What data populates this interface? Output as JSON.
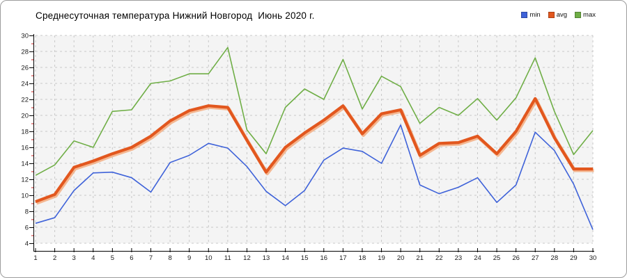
{
  "title": "Среднесуточная температура Нижний Новгород  Июнь 2020 г.",
  "legend": [
    {
      "label": "min",
      "color": "#3e62d9"
    },
    {
      "label": "avg",
      "color": "#e2571e"
    },
    {
      "label": "max",
      "color": "#6fae46"
    }
  ],
  "chart_data": {
    "type": "line",
    "title": "Среднесуточная температура Нижний Новгород  Июнь 2020 г.",
    "xlabel": "",
    "ylabel": "",
    "x": [
      1,
      2,
      3,
      4,
      5,
      6,
      7,
      8,
      9,
      10,
      11,
      12,
      13,
      14,
      15,
      16,
      17,
      18,
      19,
      20,
      21,
      22,
      23,
      24,
      25,
      26,
      27,
      28,
      29,
      30
    ],
    "series": [
      {
        "name": "min",
        "color": "#3e62d9",
        "values": [
          6.5,
          7.2,
          10.6,
          12.8,
          12.9,
          12.2,
          10.4,
          14.1,
          15.0,
          16.5,
          15.9,
          13.6,
          10.5,
          8.7,
          10.6,
          14.4,
          15.9,
          15.5,
          14.0,
          18.8,
          11.3,
          10.2,
          11.0,
          12.2,
          9.1,
          11.3,
          17.9,
          15.6,
          11.4,
          5.7
        ]
      },
      {
        "name": "avg",
        "color": "#e2571e",
        "values": [
          9.2,
          10.1,
          13.5,
          14.3,
          15.2,
          16.0,
          17.4,
          19.3,
          20.6,
          21.2,
          21.0,
          16.9,
          12.9,
          16.0,
          17.8,
          19.4,
          21.2,
          17.7,
          20.2,
          20.7,
          15.0,
          16.5,
          16.6,
          17.4,
          15.2,
          18.0,
          22.1,
          17.2,
          13.3,
          13.3
        ]
      },
      {
        "name": "max",
        "color": "#6fae46",
        "values": [
          12.5,
          13.8,
          16.8,
          16.0,
          20.5,
          20.7,
          24.0,
          24.3,
          25.2,
          25.2,
          28.5,
          18.2,
          15.2,
          21.0,
          23.3,
          22.0,
          27.0,
          20.8,
          24.9,
          23.6,
          19.0,
          21.0,
          20.0,
          22.1,
          19.4,
          22.2,
          27.2,
          20.5,
          15.1,
          18.1
        ]
      }
    ],
    "ylim": [
      4,
      30
    ],
    "y_ticks": [
      4,
      6,
      8,
      10,
      12,
      14,
      16,
      18,
      20,
      22,
      24,
      26,
      28,
      30
    ],
    "y_minor_ticks": [
      5,
      7,
      9,
      11,
      13,
      15,
      17,
      19,
      21,
      23,
      25,
      27,
      29
    ],
    "grid": true,
    "legend_position": "top-right",
    "colors": {
      "plot_background": "#f4f4f4",
      "gridline": "#c8c8c8",
      "axis": "#000000",
      "minor_tick": "#cc2222",
      "avg_halo": "#f4a878"
    }
  }
}
